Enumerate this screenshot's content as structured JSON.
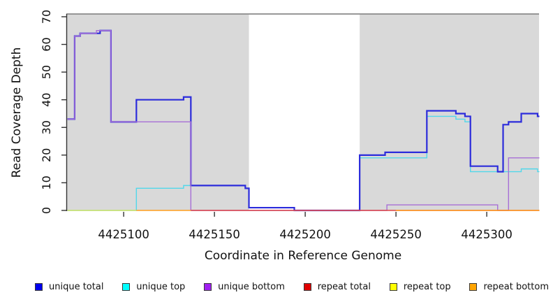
{
  "chart_data": {
    "type": "line",
    "subtype": "step-coverage",
    "title": "",
    "xlabel": "Coordinate in Reference Genome",
    "ylabel": "Read Coverage Depth",
    "xlim": [
      4425068.8,
      4425328.8
    ],
    "ylim": [
      0,
      71
    ],
    "x_ticks": [
      4425100,
      4425150,
      4425200,
      4425250,
      4425300
    ],
    "y_ticks": [
      0,
      10,
      20,
      30,
      40,
      50,
      60,
      70
    ],
    "grid": false,
    "axis_color": "#333333",
    "top_border_color": "#8a8a8a",
    "background_bands": {
      "color": "#d9d9d9",
      "note": "gray = regions with read data; white gap = no coverage data",
      "regions": [
        [
          4425068.8,
          4425169
        ],
        [
          4425230,
          4425328.8
        ]
      ]
    },
    "legend": {
      "position": "bottom",
      "entries": [
        {
          "label": "unique total",
          "color": "#0000ee"
        },
        {
          "label": "unique top",
          "color": "#00ffff"
        },
        {
          "label": "unique bottom",
          "color": "#a020f0"
        },
        {
          "label": "repeat total",
          "color": "#e00000"
        },
        {
          "label": "repeat top",
          "color": "#ffff00"
        },
        {
          "label": "repeat bottom",
          "color": "#ffa500"
        }
      ]
    },
    "series": [
      {
        "name": "unique top",
        "line_color": "#52d8ea",
        "line_width": 1.4,
        "segments": [
          {
            "steps": [
              [
                4425069,
                0
              ],
              [
                4425107,
                8
              ],
              [
                4425133,
                9
              ],
              [
                4425167,
                8
              ],
              [
                4425169,
                1
              ],
              [
                4425194,
                0
              ],
              [
                4425230,
                19
              ],
              [
                4425267,
                34
              ],
              [
                4425283,
                33
              ],
              [
                4425288,
                32
              ],
              [
                4425291,
                14
              ],
              [
                4425319,
                15
              ],
              [
                4425328,
                14
              ]
            ],
            "end": 4425329
          }
        ]
      },
      {
        "name": "unique total",
        "line_color": "#2c2cdb",
        "line_width": 2.2,
        "segments": [
          {
            "steps": [
              [
                4425069,
                33
              ],
              [
                4425073,
                63
              ],
              [
                4425076,
                64
              ],
              [
                4425087,
                65
              ],
              [
                4425093,
                32
              ],
              [
                4425107,
                40
              ],
              [
                4425133,
                41
              ],
              [
                4425137,
                9
              ],
              [
                4425167,
                8
              ],
              [
                4425169,
                1
              ],
              [
                4425194,
                0
              ],
              [
                4425230,
                20
              ],
              [
                4425244,
                21
              ],
              [
                4425267,
                36
              ],
              [
                4425283,
                35
              ],
              [
                4425288,
                34
              ],
              [
                4425291,
                16
              ],
              [
                4425306,
                14
              ],
              [
                4425309,
                31
              ],
              [
                4425312,
                32
              ],
              [
                4425319,
                35
              ],
              [
                4425328,
                34
              ]
            ],
            "end": 4425329
          }
        ]
      },
      {
        "name": "unique bottom",
        "line_color": "#a76fd6",
        "line_width": 1.4,
        "segments": [
          {
            "steps": [
              [
                4425069,
                33
              ],
              [
                4425073,
                63
              ],
              [
                4425076,
                64
              ],
              [
                4425085,
                65
              ],
              [
                4425093,
                32
              ],
              [
                4425137,
                0
              ],
              [
                4425245,
                2
              ],
              [
                4425306,
                0
              ],
              [
                4425312,
                19
              ]
            ],
            "end": 4425329
          }
        ]
      },
      {
        "name": "repeat total",
        "line_color": "#dd4444",
        "line_width": 1.4,
        "segments": [
          {
            "steps": [
              [
                4425137,
                0
              ]
            ],
            "end": 4425329
          }
        ]
      },
      {
        "name": "repeat top",
        "line_color": "#d8e262",
        "line_width": 1.4,
        "segments": [
          {
            "steps": [
              [
                4425069,
                0
              ]
            ],
            "end": 4425107
          }
        ]
      },
      {
        "name": "repeat bottom",
        "line_color": "#ff9d1e",
        "line_width": 1.6,
        "segments": [
          {
            "steps": [
              [
                4425107,
                0
              ]
            ],
            "end": 4425137
          },
          {
            "steps": [
              [
                4425250,
                0
              ]
            ],
            "end": 4425329
          }
        ]
      }
    ]
  }
}
